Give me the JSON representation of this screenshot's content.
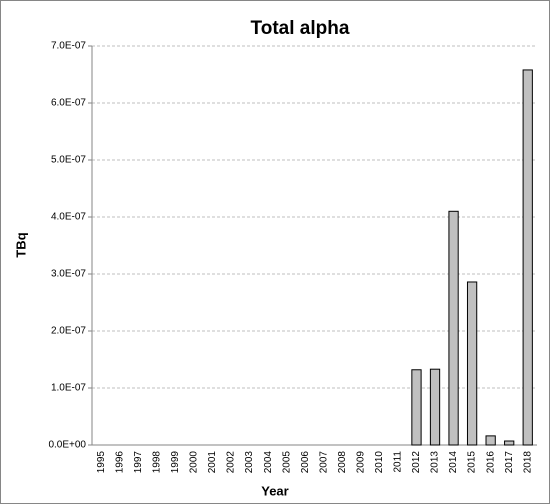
{
  "chart_data": {
    "type": "bar",
    "title": "Total alpha",
    "x_label": "Year",
    "y_label": "TBq",
    "categories": [
      "1995",
      "1996",
      "1997",
      "1998",
      "1999",
      "2000",
      "2001",
      "2002",
      "2003",
      "2004",
      "2005",
      "2006",
      "2007",
      "2008",
      "2009",
      "2010",
      "2011",
      "2012",
      "2013",
      "2014",
      "2015",
      "2016",
      "2017",
      "2018"
    ],
    "values": [
      0,
      0,
      0,
      0,
      0,
      0,
      0,
      0,
      0,
      0,
      0,
      0,
      0,
      0,
      0,
      0,
      0,
      1.32e-07,
      1.33e-07,
      4.1e-07,
      2.86e-07,
      1.6e-08,
      7e-09,
      6.58e-07
    ],
    "color": "#c0c0c0",
    "ylim": [
      0,
      7e-07
    ],
    "yticks": [
      {
        "value": 0,
        "label": "0.0E+00"
      },
      {
        "value": 1e-07,
        "label": "1.0E-07"
      },
      {
        "value": 2e-07,
        "label": "2.0E-07"
      },
      {
        "value": 3e-07,
        "label": "3.0E-07"
      },
      {
        "value": 4e-07,
        "label": "4.0E-07"
      },
      {
        "value": 5e-07,
        "label": "5.0E-07"
      },
      {
        "value": 6e-07,
        "label": "6.0E-07"
      },
      {
        "value": 7e-07,
        "label": "7.0E-07"
      }
    ],
    "grid": true
  }
}
